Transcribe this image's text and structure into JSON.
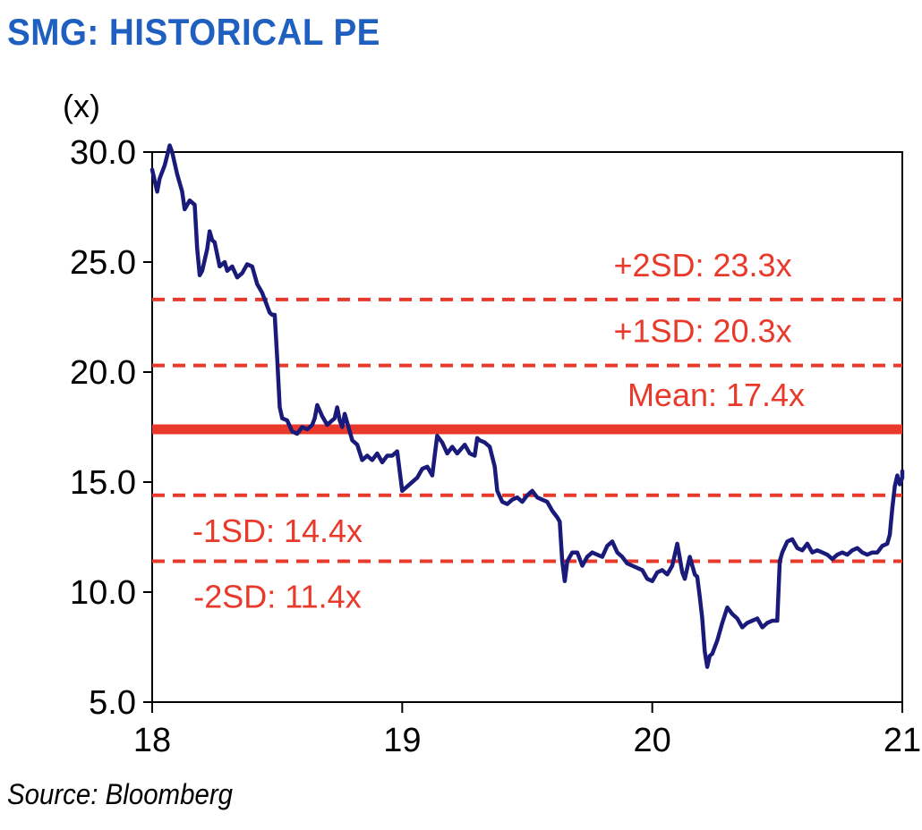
{
  "title": "SMG: HISTORICAL PE",
  "unit_label": "(x)",
  "source": "Source: Bloomberg",
  "colors": {
    "title": "#1f5fbf",
    "series": "#1a1a7a",
    "reference": "#e8392b"
  },
  "chart_data": {
    "type": "line",
    "title": "SMG: HISTORICAL PE",
    "ylabel": "(x)",
    "xlabel": "",
    "ylim": [
      5.0,
      30.0
    ],
    "xlim": [
      18,
      21
    ],
    "y_ticks": [
      "30.0",
      "25.0",
      "20.0",
      "15.0",
      "10.0",
      "5.0"
    ],
    "x_ticks": [
      "18",
      "19",
      "20",
      "21"
    ],
    "grid": false,
    "reference_lines": [
      {
        "label": "+2SD: 23.3x",
        "value": 23.3,
        "style": "dashed"
      },
      {
        "label": "+1SD: 20.3x",
        "value": 20.3,
        "style": "dashed"
      },
      {
        "label": "Mean: 17.4x",
        "value": 17.4,
        "style": "solid"
      },
      {
        "label": "-1SD: 14.4x",
        "value": 14.4,
        "style": "dashed"
      },
      {
        "label": "-2SD: 11.4x",
        "value": 11.4,
        "style": "dashed"
      }
    ],
    "series": [
      {
        "x": [
          18.0,
          18.02,
          18.03,
          18.05,
          18.07,
          18.08,
          18.1,
          18.12,
          18.13,
          18.15,
          18.17,
          18.18,
          18.19,
          18.2,
          18.22,
          18.23,
          18.24,
          18.25,
          18.27,
          18.29,
          18.3,
          18.32,
          18.34,
          18.36,
          18.38,
          18.4,
          18.42,
          18.44,
          18.46,
          18.47,
          18.48,
          18.49,
          18.5,
          18.51,
          18.52,
          18.54,
          18.56,
          18.58,
          18.6,
          18.62,
          18.64,
          18.65,
          18.66,
          18.68,
          18.7,
          18.72,
          18.73,
          18.74,
          18.75,
          18.76,
          18.77,
          18.78,
          18.8,
          18.82,
          18.84,
          18.86,
          18.88,
          18.9,
          18.92,
          18.94,
          18.96,
          18.98,
          19.0,
          19.02,
          19.04,
          19.06,
          19.08,
          19.1,
          19.12,
          19.13,
          19.14,
          19.16,
          19.18,
          19.2,
          19.22,
          19.25,
          19.27,
          19.29,
          19.3,
          19.31,
          19.33,
          19.35,
          19.37,
          19.38,
          19.4,
          19.42,
          19.44,
          19.46,
          19.48,
          19.5,
          19.52,
          19.54,
          19.56,
          19.58,
          19.6,
          19.62,
          19.63,
          19.64,
          19.65,
          19.66,
          19.68,
          19.7,
          19.72,
          19.74,
          19.76,
          19.78,
          19.8,
          19.82,
          19.84,
          19.86,
          19.88,
          19.9,
          19.92,
          19.94,
          19.96,
          19.98,
          20.0,
          20.02,
          20.04,
          20.06,
          20.08,
          20.1,
          20.12,
          20.13,
          20.15,
          20.17,
          20.18,
          20.19,
          20.2,
          20.21,
          20.22,
          20.23,
          20.24,
          20.26,
          20.28,
          20.3,
          20.32,
          20.34,
          20.36,
          20.38,
          20.4,
          20.42,
          20.44,
          20.46,
          20.48,
          20.5,
          20.51,
          20.52,
          20.54,
          20.56,
          20.58,
          20.6,
          20.62,
          20.64,
          20.66,
          20.68,
          20.7,
          20.72,
          20.74,
          20.76,
          20.78,
          20.8,
          20.82,
          20.84,
          20.86,
          20.88,
          20.9,
          20.92,
          20.94,
          20.95,
          20.96,
          20.97,
          20.98,
          20.99,
          21.0,
          21.02
        ],
        "values": [
          29.2,
          28.2,
          28.8,
          29.4,
          30.3,
          30.0,
          29.0,
          28.2,
          27.4,
          27.8,
          27.6,
          25.6,
          24.4,
          24.6,
          25.6,
          26.4,
          26.0,
          25.9,
          24.8,
          25.0,
          24.6,
          24.8,
          24.3,
          24.5,
          24.9,
          24.8,
          24.0,
          23.6,
          23.0,
          22.7,
          22.6,
          22.6,
          20.6,
          18.4,
          17.9,
          17.8,
          17.3,
          17.2,
          17.5,
          17.4,
          17.6,
          17.9,
          18.5,
          18.0,
          17.6,
          17.8,
          17.9,
          18.4,
          17.8,
          17.5,
          18.1,
          17.7,
          16.9,
          16.7,
          16.0,
          16.2,
          16.0,
          16.3,
          15.9,
          16.2,
          16.2,
          16.4,
          14.6,
          14.8,
          15.0,
          15.2,
          15.6,
          15.7,
          15.3,
          16.2,
          17.1,
          16.8,
          16.3,
          16.6,
          16.3,
          16.7,
          16.3,
          16.2,
          17.0,
          16.9,
          16.8,
          16.6,
          15.7,
          14.6,
          14.1,
          14.0,
          14.2,
          14.3,
          14.1,
          14.4,
          14.6,
          14.3,
          14.2,
          14.1,
          13.7,
          13.4,
          13.2,
          11.4,
          10.5,
          11.4,
          11.8,
          11.8,
          11.2,
          11.6,
          11.8,
          11.7,
          11.6,
          12.1,
          12.3,
          11.8,
          11.6,
          11.3,
          11.2,
          11.1,
          11.0,
          10.6,
          10.5,
          10.9,
          11.0,
          10.8,
          11.2,
          12.2,
          10.9,
          10.6,
          11.6,
          10.8,
          10.7,
          9.8,
          8.8,
          7.3,
          6.6,
          7.1,
          7.2,
          7.8,
          8.6,
          9.3,
          9.0,
          8.8,
          8.4,
          8.6,
          8.7,
          8.8,
          8.4,
          8.6,
          8.7,
          8.7,
          11.4,
          11.8,
          12.3,
          12.4,
          12.0,
          11.9,
          12.2,
          11.8,
          11.9,
          11.8,
          11.7,
          11.5,
          11.7,
          11.8,
          11.7,
          11.9,
          12.0,
          11.8,
          11.7,
          11.8,
          11.8,
          12.1,
          12.2,
          12.6,
          13.8,
          14.8,
          15.3,
          14.9,
          15.2,
          15.5
        ]
      }
    ]
  }
}
